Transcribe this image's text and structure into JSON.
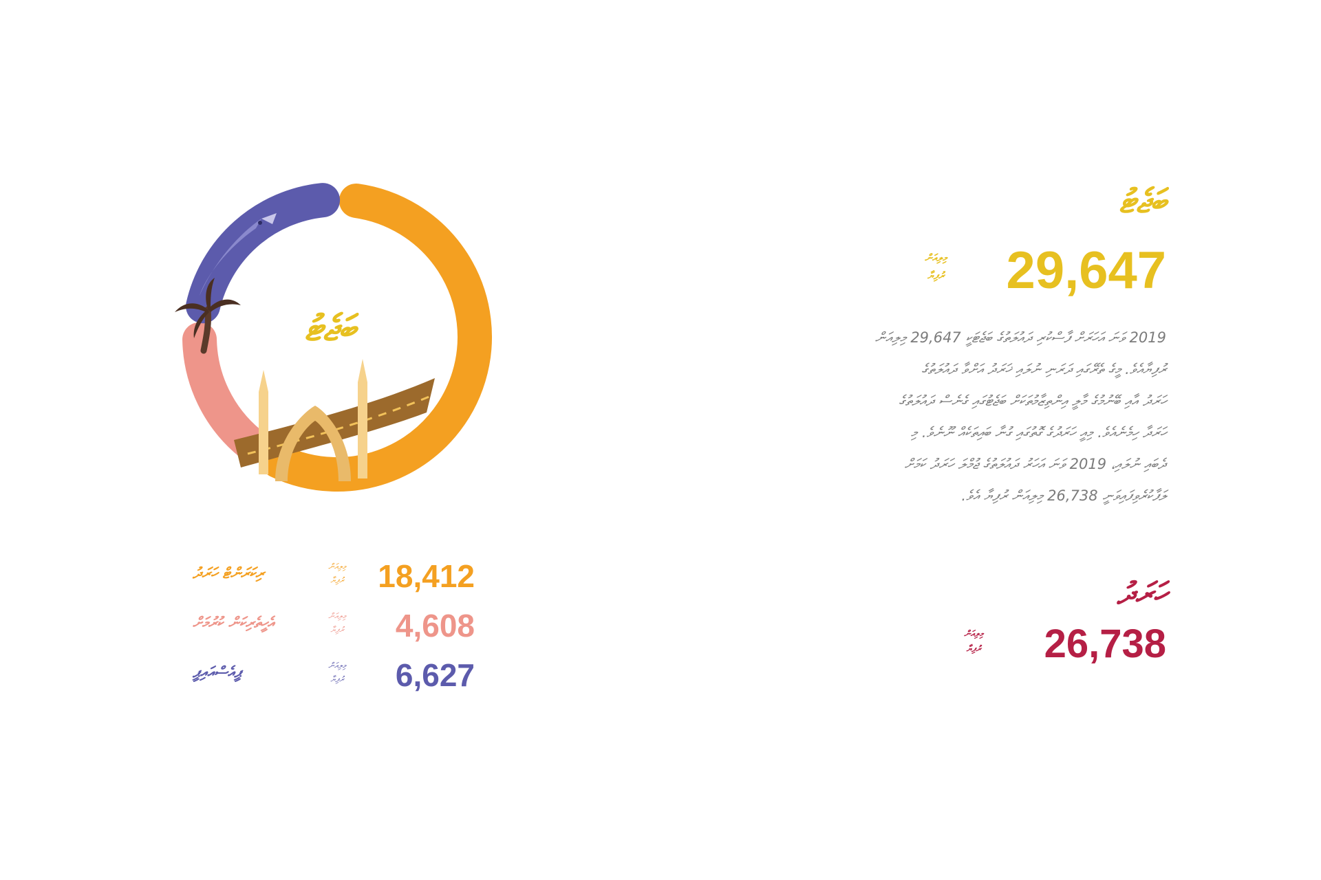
{
  "colors": {
    "orange": "#f4a021",
    "salmon": "#ee958a",
    "indigo": "#5c5bac",
    "yellow": "#e7c020",
    "crimson": "#b51f45",
    "gray": "#7b7b7b"
  },
  "chart_data": {
    "type": "pie",
    "title": "ބަޖެޓު",
    "categories": [
      "ރިކަރަންޓް ހަރަދު",
      "އެހީތެރިކަން ކުރުމަށް",
      "ޕީއެސްއައިޕީ"
    ],
    "values": [
      18412,
      4608,
      6627
    ],
    "series_colors": [
      "#f4a021",
      "#ee958a",
      "#5c5bac"
    ],
    "unit": "މިލިއަން ރުފިޔާ",
    "illustrations": [
      "fish-icon",
      "palm-tree-icon",
      "mosque-icon",
      "road-icon"
    ]
  },
  "legend": [
    {
      "label": "ރިކަރަންޓް ހަރަދު",
      "value": "18,412",
      "unit_line1": "މިލިއަން",
      "unit_line2": "ރުފިޔާ",
      "color": "#f4a021"
    },
    {
      "label": "އެހީތެރިކަން ކުރުމަށް",
      "value": "4,608",
      "unit_line1": "މިލިއަން",
      "unit_line2": "ރުފިޔާ",
      "color": "#ee958a"
    },
    {
      "label": "ޕީއެސްއައިޕީ",
      "value": "6,627",
      "unit_line1": "މިލިއަން",
      "unit_line2": "ރުފިޔާ",
      "color": "#5c5bac"
    }
  ],
  "hero": {
    "title": "ބަޖެޓު",
    "value": "29,647",
    "unit_line1": "މިލިއަން",
    "unit_line2": "ރުފިޔާ"
  },
  "body_lines": [
    "2019 ވަނަ އަހަރަށް ފާސްކުރި ދައުލަތުގެ ބަޖެޓަކީ 29,647 މިލިއަން",
    "ރުފިޔާއެވެ. މީގެ ތެރޭގައި ދަރަނި ނުލައި ޚަރަދު އަށްވާ ދައުލަތުގެ",
    "ހަރަދު އާއި ބޭނުމުގެ މާލީ އިންތިޒާމުތަކަށް ބަޖެޓުގައި ގެނެސް ދައުލަތުގެ",
    "ހަރަދާ ހިމެނެއެވެ. މިއީ ހަރަދުގެ ގޮތުގައި ގުނާ ބައިތަކެއް ނޫނެވެ. މި",
    "ދެބައި ނުލައި، 2019 ވަނަ އަހަރު ދައުލަތުގެ ޖުމްލަ ހަރަދު ކަމަށް",
    "ލަފާކުރެވިފައިވަނީ 26,738 މިލިއަން ރުފިޔާ އެވެ."
  ],
  "subtotal": {
    "title": "ހަރަދު",
    "value": "26,738",
    "unit_line1": "މިލިއަން",
    "unit_line2": "ރުފިޔާ"
  }
}
